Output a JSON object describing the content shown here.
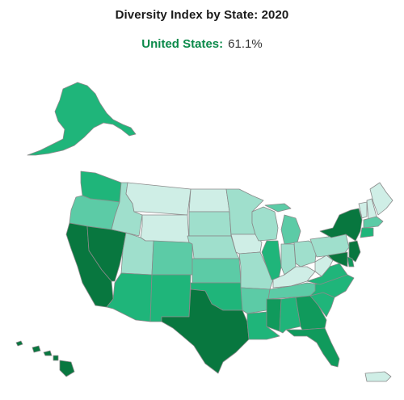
{
  "title": "Diversity Index by State: 2020",
  "national": {
    "label": "United States:",
    "value": "61.1%"
  },
  "legend": {
    "colors": [
      "#cfeee6",
      "#9fdfcc",
      "#5ccba6",
      "#1fb57a",
      "#109a5c",
      "#08773f"
    ]
  },
  "chart_data": {
    "type": "choropleth",
    "states": [
      {
        "id": "WA",
        "level": 3
      },
      {
        "id": "OR",
        "level": 2
      },
      {
        "id": "CA",
        "level": 5
      },
      {
        "id": "NV",
        "level": 5
      },
      {
        "id": "ID",
        "level": 1
      },
      {
        "id": "MT",
        "level": 0
      },
      {
        "id": "WY",
        "level": 0
      },
      {
        "id": "UT",
        "level": 1
      },
      {
        "id": "AZ",
        "level": 3
      },
      {
        "id": "CO",
        "level": 2
      },
      {
        "id": "NM",
        "level": 3
      },
      {
        "id": "ND",
        "level": 0
      },
      {
        "id": "SD",
        "level": 1
      },
      {
        "id": "NE",
        "level": 1
      },
      {
        "id": "KS",
        "level": 2
      },
      {
        "id": "OK",
        "level": 3
      },
      {
        "id": "TX",
        "level": 5
      },
      {
        "id": "MN",
        "level": 1
      },
      {
        "id": "IA",
        "level": 0
      },
      {
        "id": "MO",
        "level": 1
      },
      {
        "id": "AR",
        "level": 2
      },
      {
        "id": "LA",
        "level": 3
      },
      {
        "id": "WI",
        "level": 1
      },
      {
        "id": "IL",
        "level": 3
      },
      {
        "id": "MI",
        "level": 2
      },
      {
        "id": "IN",
        "level": 1
      },
      {
        "id": "OH",
        "level": 1
      },
      {
        "id": "KY",
        "level": 0
      },
      {
        "id": "TN",
        "level": 2
      },
      {
        "id": "MS",
        "level": 4
      },
      {
        "id": "AL",
        "level": 3
      },
      {
        "id": "GA",
        "level": 4
      },
      {
        "id": "FL",
        "level": 4
      },
      {
        "id": "SC",
        "level": 3
      },
      {
        "id": "NC",
        "level": 3
      },
      {
        "id": "VA",
        "level": 3
      },
      {
        "id": "WV",
        "level": 0
      },
      {
        "id": "PA",
        "level": 1
      },
      {
        "id": "NY",
        "level": 5
      },
      {
        "id": "VT",
        "level": 0
      },
      {
        "id": "NH",
        "level": 0
      },
      {
        "id": "ME",
        "level": 0
      },
      {
        "id": "MA",
        "level": 2
      },
      {
        "id": "CT",
        "level": 3
      },
      {
        "id": "NJ",
        "level": 5
      },
      {
        "id": "DE",
        "level": 4
      },
      {
        "id": "MD",
        "level": 5
      },
      {
        "id": "AK",
        "level": 3
      },
      {
        "id": "HI",
        "level": 5
      },
      {
        "id": "PR",
        "level": 0
      }
    ]
  }
}
